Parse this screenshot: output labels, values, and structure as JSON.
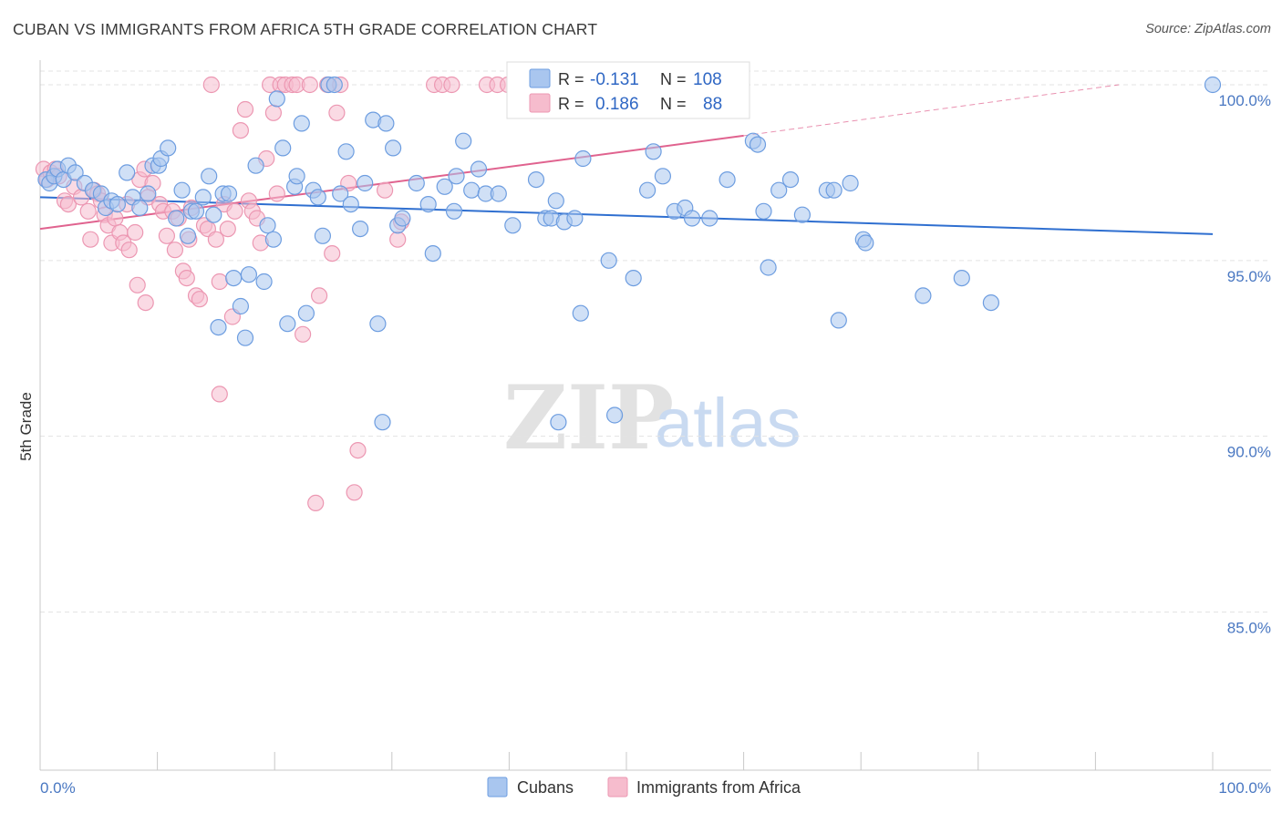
{
  "header": {
    "title": "CUBAN VS IMMIGRANTS FROM AFRICA 5TH GRADE CORRELATION CHART",
    "source": "Source: ZipAtlas.com"
  },
  "colors": {
    "blue_fill": "#a9c6ef",
    "blue_stroke": "#6d9de0",
    "blue_line": "#2f6fd0",
    "pink_fill": "#f6bccd",
    "pink_stroke": "#ec97b2",
    "pink_line": "#e0638f",
    "grid": "#e3e3e3",
    "tick_label": "#4a78c2"
  },
  "watermark": {
    "zip": "ZIP",
    "atlas": "atlas"
  },
  "legend_box": {
    "rows": [
      {
        "r_label": "R =",
        "r_value": "-0.131",
        "n_label": "N =",
        "n_value": "108"
      },
      {
        "r_label": "R =",
        "r_value": "0.186",
        "n_label": "N =",
        "n_value": "88"
      }
    ]
  },
  "chart_data": {
    "type": "scatter",
    "title": "CUBAN VS IMMIGRANTS FROM AFRICA 5TH GRADE CORRELATION CHART",
    "ylabel": "5th Grade",
    "xlabel": "",
    "xlim": [
      0,
      100
    ],
    "ylim": [
      80.5,
      100.7
    ],
    "x_tick_labels": [
      "0.0%",
      "100.0%"
    ],
    "y_ticks": [
      85,
      90,
      95,
      100
    ],
    "y_tick_labels": [
      "85.0%",
      "90.0%",
      "95.0%",
      "100.0%"
    ],
    "grid": true,
    "legend_position": "bottom",
    "series": [
      {
        "name": "Cubans",
        "r": -0.131,
        "n": 108,
        "trend": {
          "x": [
            0,
            100
          ],
          "y": [
            96.8,
            95.75
          ]
        },
        "points": [
          [
            0.5,
            97.3
          ],
          [
            0.8,
            97.2
          ],
          [
            1.2,
            97.4
          ],
          [
            1.5,
            97.6
          ],
          [
            2,
            97.3
          ],
          [
            2.4,
            97.7
          ],
          [
            3,
            97.5
          ],
          [
            3.8,
            97.2
          ],
          [
            4.5,
            97.0
          ],
          [
            5.2,
            96.9
          ],
          [
            5.6,
            96.5
          ],
          [
            6.1,
            96.7
          ],
          [
            6.6,
            96.6
          ],
          [
            7.4,
            97.5
          ],
          [
            7.9,
            96.8
          ],
          [
            8.5,
            96.5
          ],
          [
            9.2,
            96.9
          ],
          [
            9.6,
            97.7
          ],
          [
            10.1,
            97.7
          ],
          [
            10.3,
            97.9
          ],
          [
            10.9,
            98.2
          ],
          [
            11.6,
            96.2
          ],
          [
            12.1,
            97.0
          ],
          [
            12.6,
            95.7
          ],
          [
            12.9,
            96.4
          ],
          [
            13.3,
            96.4
          ],
          [
            13.9,
            96.8
          ],
          [
            14.4,
            97.4
          ],
          [
            14.8,
            96.3
          ],
          [
            15.2,
            93.1
          ],
          [
            15.6,
            96.9
          ],
          [
            16.1,
            96.9
          ],
          [
            16.5,
            94.5
          ],
          [
            17.1,
            93.7
          ],
          [
            17.5,
            92.8
          ],
          [
            17.8,
            94.6
          ],
          [
            18.4,
            97.7
          ],
          [
            19.1,
            94.4
          ],
          [
            19.4,
            96.0
          ],
          [
            19.9,
            95.6
          ],
          [
            20.2,
            99.6
          ],
          [
            20.7,
            98.2
          ],
          [
            21.1,
            93.2
          ],
          [
            21.7,
            97.1
          ],
          [
            21.9,
            97.4
          ],
          [
            22.3,
            98.9
          ],
          [
            22.7,
            93.5
          ],
          [
            23.3,
            97.0
          ],
          [
            23.7,
            96.8
          ],
          [
            24.1,
            95.7
          ],
          [
            24.6,
            100.0
          ],
          [
            25.1,
            100.0
          ],
          [
            25.6,
            96.9
          ],
          [
            26.1,
            98.1
          ],
          [
            26.5,
            96.6
          ],
          [
            27.3,
            95.9
          ],
          [
            27.7,
            97.2
          ],
          [
            28.4,
            99.0
          ],
          [
            28.8,
            93.2
          ],
          [
            29.2,
            90.4
          ],
          [
            29.5,
            98.9
          ],
          [
            30.1,
            98.2
          ],
          [
            30.5,
            96.0
          ],
          [
            30.9,
            96.2
          ],
          [
            32.1,
            97.2
          ],
          [
            33.1,
            96.6
          ],
          [
            33.5,
            95.2
          ],
          [
            34.5,
            97.1
          ],
          [
            35.3,
            96.4
          ],
          [
            35.5,
            97.4
          ],
          [
            36.1,
            98.4
          ],
          [
            36.8,
            97.0
          ],
          [
            37.4,
            97.6
          ],
          [
            38.0,
            96.9
          ],
          [
            39.1,
            96.9
          ],
          [
            40.3,
            96.0
          ],
          [
            42.3,
            97.3
          ],
          [
            43.1,
            96.2
          ],
          [
            43.6,
            96.2
          ],
          [
            44.0,
            96.7
          ],
          [
            44.7,
            96.1
          ],
          [
            44.2,
            90.4
          ],
          [
            45.6,
            96.2
          ],
          [
            46.1,
            93.5
          ],
          [
            46.3,
            97.9
          ],
          [
            48.5,
            95.0
          ],
          [
            49.0,
            90.6
          ],
          [
            50.6,
            94.5
          ],
          [
            51.8,
            97.0
          ],
          [
            52.3,
            98.1
          ],
          [
            53.1,
            97.4
          ],
          [
            54.1,
            96.4
          ],
          [
            55.0,
            96.5
          ],
          [
            55.6,
            96.2
          ],
          [
            57.1,
            96.2
          ],
          [
            58.6,
            97.3
          ],
          [
            60.8,
            98.4
          ],
          [
            61.2,
            98.3
          ],
          [
            61.7,
            96.4
          ],
          [
            62.1,
            94.8
          ],
          [
            63.0,
            97.0
          ],
          [
            64.0,
            97.3
          ],
          [
            65.0,
            96.3
          ],
          [
            67.1,
            97.0
          ],
          [
            67.7,
            97.0
          ],
          [
            68.1,
            93.3
          ],
          [
            69.1,
            97.2
          ],
          [
            70.2,
            95.6
          ],
          [
            70.4,
            95.5
          ],
          [
            75.3,
            94.0
          ],
          [
            78.6,
            94.5
          ],
          [
            81.1,
            93.8
          ],
          [
            100.0,
            100.0
          ]
        ]
      },
      {
        "name": "Immigrants from Africa",
        "r": 0.186,
        "n": 88,
        "trend": {
          "x": [
            0,
            60
          ],
          "y": [
            95.9,
            98.55
          ]
        },
        "trend_extension": {
          "x": [
            60,
            92
          ],
          "y": [
            98.55,
            100.0
          ]
        },
        "points": [
          [
            0.3,
            97.6
          ],
          [
            0.6,
            97.3
          ],
          [
            0.9,
            97.5
          ],
          [
            1.3,
            97.6
          ],
          [
            1.6,
            97.4
          ],
          [
            2.1,
            96.7
          ],
          [
            2.4,
            96.6
          ],
          [
            2.9,
            97.1
          ],
          [
            3.5,
            96.8
          ],
          [
            4.1,
            96.4
          ],
          [
            4.3,
            95.6
          ],
          [
            4.6,
            97.0
          ],
          [
            4.9,
            96.9
          ],
          [
            5.2,
            96.7
          ],
          [
            5.5,
            96.3
          ],
          [
            5.8,
            96.0
          ],
          [
            6.1,
            95.5
          ],
          [
            6.4,
            96.2
          ],
          [
            6.8,
            95.8
          ],
          [
            7.1,
            95.5
          ],
          [
            7.4,
            96.6
          ],
          [
            7.6,
            95.3
          ],
          [
            8.1,
            95.8
          ],
          [
            8.5,
            97.3
          ],
          [
            8.9,
            97.6
          ],
          [
            9.2,
            96.8
          ],
          [
            9.6,
            97.2
          ],
          [
            10.2,
            96.6
          ],
          [
            10.5,
            96.4
          ],
          [
            10.8,
            95.7
          ],
          [
            11.3,
            96.4
          ],
          [
            11.5,
            95.3
          ],
          [
            11.8,
            96.2
          ],
          [
            12.2,
            94.7
          ],
          [
            12.5,
            94.5
          ],
          [
            12.9,
            96.5
          ],
          [
            13.3,
            94.0
          ],
          [
            13.6,
            93.9
          ],
          [
            14.0,
            96.0
          ],
          [
            14.3,
            95.9
          ],
          [
            14.6,
            100.0
          ],
          [
            15.0,
            95.6
          ],
          [
            15.3,
            94.4
          ],
          [
            15.7,
            96.6
          ],
          [
            16.0,
            95.9
          ],
          [
            16.4,
            93.4
          ],
          [
            16.6,
            96.4
          ],
          [
            17.1,
            98.7
          ],
          [
            17.5,
            99.3
          ],
          [
            17.8,
            96.7
          ],
          [
            18.1,
            96.4
          ],
          [
            18.5,
            96.2
          ],
          [
            18.8,
            95.5
          ],
          [
            19.3,
            97.9
          ],
          [
            19.6,
            100.0
          ],
          [
            19.9,
            99.2
          ],
          [
            20.2,
            96.9
          ],
          [
            20.5,
            100.0
          ],
          [
            20.9,
            100.0
          ],
          [
            21.5,
            100.0
          ],
          [
            21.9,
            100.0
          ],
          [
            22.4,
            92.9
          ],
          [
            23.0,
            100.0
          ],
          [
            23.8,
            94.0
          ],
          [
            24.5,
            100.0
          ],
          [
            24.9,
            95.2
          ],
          [
            25.3,
            99.2
          ],
          [
            25.6,
            100.0
          ],
          [
            26.3,
            97.2
          ],
          [
            26.8,
            88.4
          ],
          [
            27.1,
            89.6
          ],
          [
            29.4,
            97.0
          ],
          [
            30.5,
            95.6
          ],
          [
            30.8,
            96.1
          ],
          [
            33.6,
            100.0
          ],
          [
            34.3,
            100.0
          ],
          [
            35.1,
            100.0
          ],
          [
            38.1,
            100.0
          ],
          [
            39.0,
            100.0
          ],
          [
            39.9,
            100.0
          ],
          [
            40.6,
            100.0
          ],
          [
            41.5,
            100.0
          ],
          [
            42.1,
            100.0
          ],
          [
            15.3,
            91.2
          ],
          [
            23.5,
            88.1
          ],
          [
            8.3,
            94.3
          ],
          [
            9.0,
            93.8
          ],
          [
            12.7,
            95.6
          ]
        ]
      }
    ]
  },
  "bottom_legend": {
    "items": [
      {
        "label": "Cubans"
      },
      {
        "label": "Immigrants from Africa"
      }
    ]
  }
}
